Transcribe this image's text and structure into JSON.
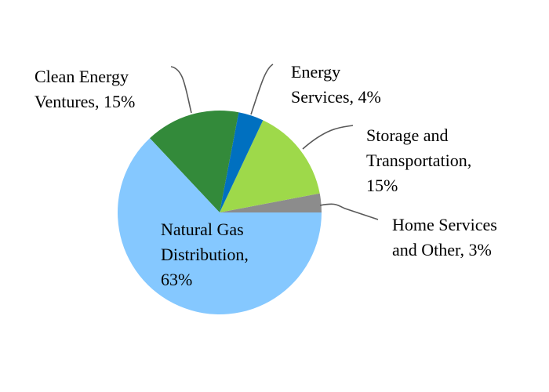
{
  "chart_data": {
    "type": "pie",
    "title": "",
    "slices": [
      {
        "label": "Home Services and Other",
        "value": 3,
        "display": [
          "Home Services",
          "and Other, 3%"
        ],
        "color": "#8c8c8c"
      },
      {
        "label": "Storage and Transportation",
        "value": 15,
        "display": [
          "Storage and",
          "Transportation,",
          "15%"
        ],
        "color": "#9ed94a"
      },
      {
        "label": "Energy Services",
        "value": 4,
        "display": [
          "Energy",
          "Services, 4%"
        ],
        "color": "#0070c0"
      },
      {
        "label": "Clean Energy Ventures",
        "value": 15,
        "display": [
          "Clean Energy",
          "Ventures, 15%"
        ],
        "color": "#338a3a"
      },
      {
        "label": "Natural Gas Distribution",
        "value": 63,
        "display": [
          "Natural Gas",
          "Distribution,",
          "63%"
        ],
        "color": "#85c8ff"
      }
    ],
    "legend": "none",
    "start": "3 o'clock, counter-clockwise"
  }
}
